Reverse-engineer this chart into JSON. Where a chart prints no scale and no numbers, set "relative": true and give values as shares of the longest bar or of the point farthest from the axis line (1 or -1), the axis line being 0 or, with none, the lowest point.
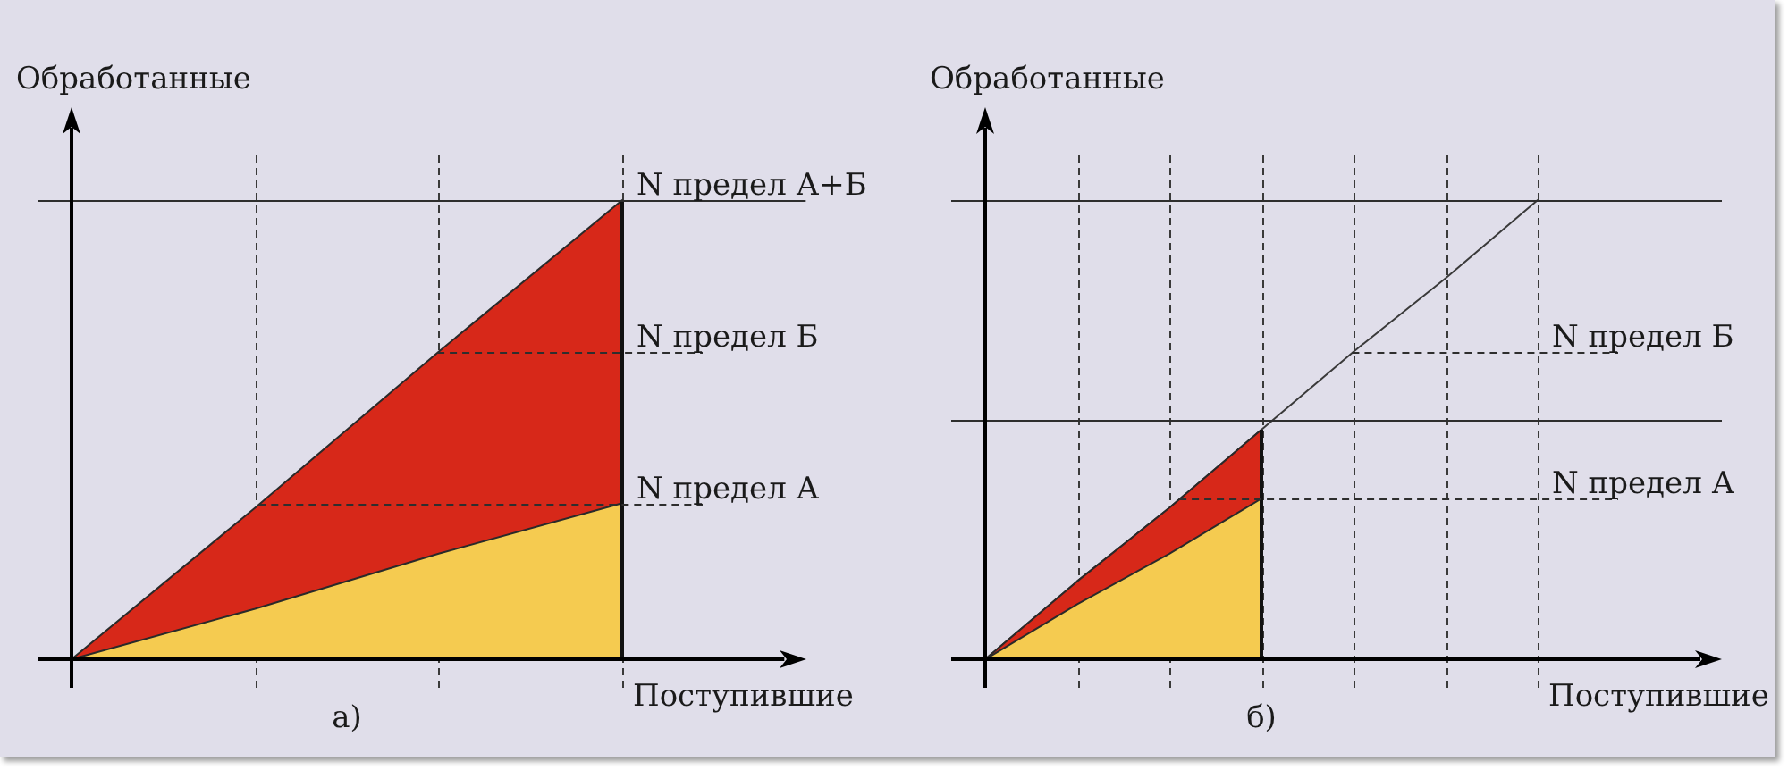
{
  "chart_data": [
    {
      "type": "area",
      "title": "а)",
      "xlabel": "Поступившие",
      "ylabel": "Обработанные",
      "relative": true,
      "stacked": true,
      "grid": "x",
      "categories": [
        null,
        null,
        null,
        null
      ],
      "series": [
        {
          "color": "#f5cb50",
          "values": [
            0,
            0.11,
            0.23,
            0.34
          ]
        },
        {
          "color": "#d72819",
          "values": [
            0,
            0.22,
            0.44,
            0.66
          ]
        }
      ],
      "ref_lines": [
        {
          "axis": "y",
          "value": 1,
          "label": "N предел А+Б",
          "line_style": "solid"
        },
        {
          "axis": "y",
          "value": 0.67,
          "label": "N предел Б",
          "line_style": "dashed"
        },
        {
          "axis": "y",
          "value": 0.34,
          "label": "N предел А",
          "line_style": "dashed"
        }
      ]
    },
    {
      "type": "area",
      "title": "б)",
      "xlabel": "Поступившие",
      "ylabel": "Обработанные",
      "relative": true,
      "stacked": true,
      "grid": "x",
      "categories": [
        null,
        null,
        null,
        null,
        null,
        null,
        null
      ],
      "series": [
        {
          "color": "#f5cb50",
          "values": [
            0,
            0.12,
            0.23,
            0.35,
            null,
            null,
            null
          ]
        },
        {
          "color": "#d72819",
          "values": [
            0,
            0.05,
            0.1,
            0.15,
            null,
            null,
            null
          ]
        },
        {
          "type": "line",
          "color": "#3a3a3a",
          "values": [
            0,
            0.17,
            0.33,
            0.5,
            0.67,
            0.83,
            1
          ]
        }
      ],
      "ref_lines": [
        {
          "axis": "y",
          "value": 1,
          "label": null,
          "line_style": "solid"
        },
        {
          "axis": "y",
          "value": 0.52,
          "label": null,
          "line_style": "solid"
        },
        {
          "axis": "y",
          "value": 0.67,
          "label": "N предел Б",
          "line_style": "dashed"
        },
        {
          "axis": "y",
          "value": 0.35,
          "label": "N предел А",
          "line_style": "dashed"
        }
      ]
    }
  ]
}
